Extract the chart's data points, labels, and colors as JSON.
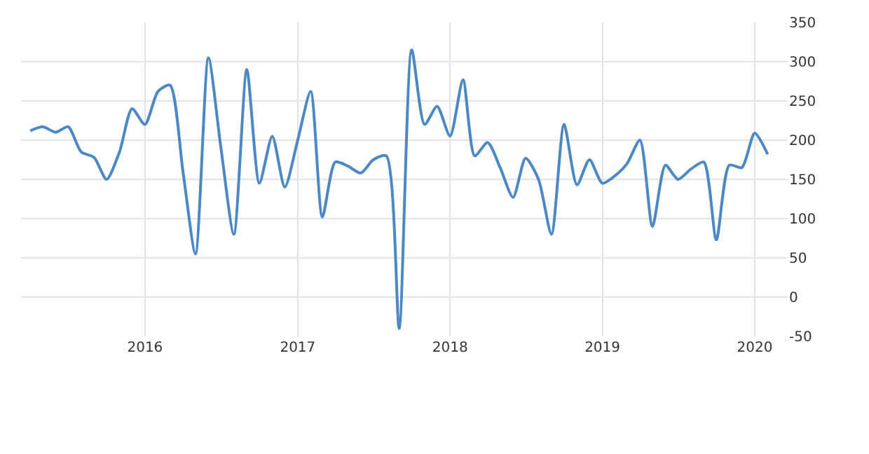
{
  "chart_data": {
    "type": "line",
    "x": [
      "2015-04",
      "2015-05",
      "2015-06",
      "2015-07",
      "2015-08",
      "2015-09",
      "2015-10",
      "2015-11",
      "2015-12",
      "2016-01",
      "2016-02",
      "2016-03",
      "2016-04",
      "2016-05",
      "2016-06",
      "2016-07",
      "2016-08",
      "2016-09",
      "2016-10",
      "2016-11",
      "2016-12",
      "2017-01",
      "2017-02",
      "2017-03",
      "2017-04",
      "2017-05",
      "2017-06",
      "2017-07",
      "2017-08",
      "2017-09",
      "2017-10",
      "2017-11",
      "2017-12",
      "2018-01",
      "2018-02",
      "2018-03",
      "2018-04",
      "2018-05",
      "2018-06",
      "2018-07",
      "2018-08",
      "2018-09",
      "2018-10",
      "2018-11",
      "2018-12",
      "2019-01",
      "2019-02",
      "2019-03",
      "2019-04",
      "2019-05",
      "2019-06",
      "2019-07",
      "2019-08",
      "2019-09",
      "2019-10",
      "2019-11",
      "2019-12",
      "2020-01",
      "2020-02"
    ],
    "series": [
      {
        "color": "#4a88c6",
        "values": [
          212,
          217,
          210,
          217,
          185,
          178,
          150,
          185,
          240,
          220,
          262,
          270,
          160,
          55,
          305,
          190,
          80,
          290,
          145,
          205,
          140,
          200,
          262,
          102,
          172,
          167,
          158,
          175,
          180,
          -40,
          315,
          220,
          243,
          205,
          277,
          180,
          197,
          165,
          127,
          177,
          150,
          80,
          220,
          143,
          175,
          145,
          155,
          170,
          200,
          90,
          168,
          150,
          163,
          172,
          73,
          168,
          165,
          209,
          182
        ]
      }
    ],
    "xlim": [
      "2015-03-10",
      "2020-03-20"
    ],
    "xticks": [
      "2016",
      "2017",
      "2018",
      "2019",
      "2020"
    ],
    "ylim": [
      -50,
      350
    ],
    "yticks": [
      -50,
      0,
      50,
      100,
      150,
      200,
      250,
      300,
      350
    ],
    "grid": true,
    "marker": "none",
    "line_style": "solid"
  }
}
